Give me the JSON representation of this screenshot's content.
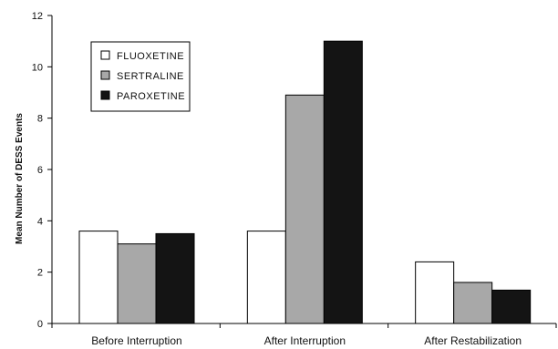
{
  "chart_data": {
    "type": "bar",
    "categories": [
      "Before Interruption",
      "After Interruption",
      "After Restabilization"
    ],
    "series": [
      {
        "name": "FLUOXETINE",
        "values": [
          3.6,
          3.6,
          2.4
        ],
        "color": "#ffffff"
      },
      {
        "name": "SERTRALINE",
        "values": [
          3.1,
          8.9,
          1.6
        ],
        "color": "#a8a8a8"
      },
      {
        "name": "PAROXETINE",
        "values": [
          3.5,
          11.0,
          1.3
        ],
        "color": "#141414"
      }
    ],
    "title": "",
    "xlabel": "",
    "ylabel": "Mean Number of DESS Events",
    "ylim": [
      0,
      12
    ],
    "yticks": [
      0,
      2,
      4,
      6,
      8,
      10,
      12
    ],
    "grid": false,
    "legend_position": "top-left"
  }
}
